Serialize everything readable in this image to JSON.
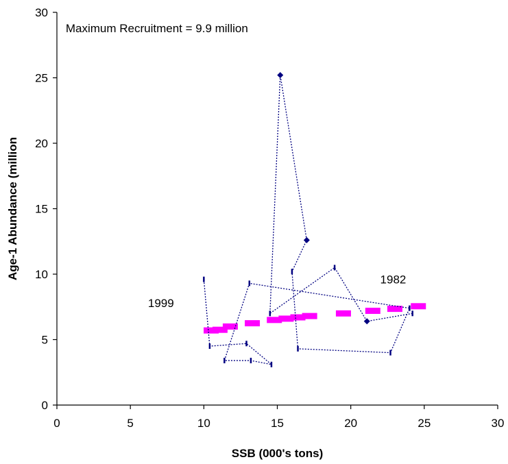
{
  "chart_data": {
    "type": "scatter",
    "xlabel": "SSB (000's tons)",
    "ylabel": "Age-1 Abundance (million",
    "xlim": [
      0,
      30
    ],
    "ylim": [
      0,
      30
    ],
    "xticks": [
      0,
      5,
      10,
      15,
      20,
      25,
      30
    ],
    "yticks": [
      0,
      5,
      10,
      15,
      20,
      25,
      30
    ],
    "grid": false,
    "annotations": [
      {
        "text": "Maximum Recruitment = 9.9 million",
        "x": 0.6,
        "y": 28.8
      },
      {
        "text": "1999",
        "x": 6.2,
        "y": 7.8
      },
      {
        "text": "1982",
        "x": 22.0,
        "y": 9.6
      }
    ],
    "series": [
      {
        "type": "observed-trajectory",
        "color": "#000080",
        "points": [
          {
            "x": 24.2,
            "y": 7.0,
            "marker": "dash"
          },
          {
            "x": 21.1,
            "y": 6.4,
            "marker": "diamond"
          },
          {
            "x": 18.9,
            "y": 10.5,
            "marker": "dash"
          },
          {
            "x": 14.5,
            "y": 7.0,
            "marker": "dash"
          },
          {
            "x": 15.2,
            "y": 25.2,
            "marker": "diamond"
          },
          {
            "x": 17.0,
            "y": 12.6,
            "marker": "diamond"
          },
          {
            "x": 16.0,
            "y": 10.2,
            "marker": "dash"
          },
          {
            "x": 16.4,
            "y": 4.3,
            "marker": "dash"
          },
          {
            "x": 22.7,
            "y": 4.0,
            "marker": "dash"
          },
          {
            "x": 24.0,
            "y": 7.4,
            "marker": "dash"
          },
          {
            "x": 13.1,
            "y": 9.3,
            "marker": "dash"
          },
          {
            "x": 11.4,
            "y": 3.4,
            "marker": "dash"
          },
          {
            "x": 13.2,
            "y": 3.4,
            "marker": "dash"
          },
          {
            "x": 14.6,
            "y": 3.1,
            "marker": "dash"
          },
          {
            "x": 12.9,
            "y": 4.7,
            "marker": "dash"
          },
          {
            "x": 10.4,
            "y": 4.5,
            "marker": "dash"
          },
          {
            "x": 10.0,
            "y": 9.6,
            "marker": "dash"
          }
        ]
      },
      {
        "type": "stock-recruit-curve",
        "color": "#ff00ff",
        "points": [
          {
            "x": 10.5,
            "y": 5.7
          },
          {
            "x": 11.1,
            "y": 5.75
          },
          {
            "x": 11.8,
            "y": 6.0
          },
          {
            "x": 13.3,
            "y": 6.25
          },
          {
            "x": 14.8,
            "y": 6.5
          },
          {
            "x": 15.6,
            "y": 6.6
          },
          {
            "x": 16.4,
            "y": 6.7
          },
          {
            "x": 17.2,
            "y": 6.8
          },
          {
            "x": 19.5,
            "y": 7.0
          },
          {
            "x": 21.5,
            "y": 7.2
          },
          {
            "x": 23.0,
            "y": 7.35
          },
          {
            "x": 24.6,
            "y": 7.55
          }
        ]
      }
    ]
  }
}
